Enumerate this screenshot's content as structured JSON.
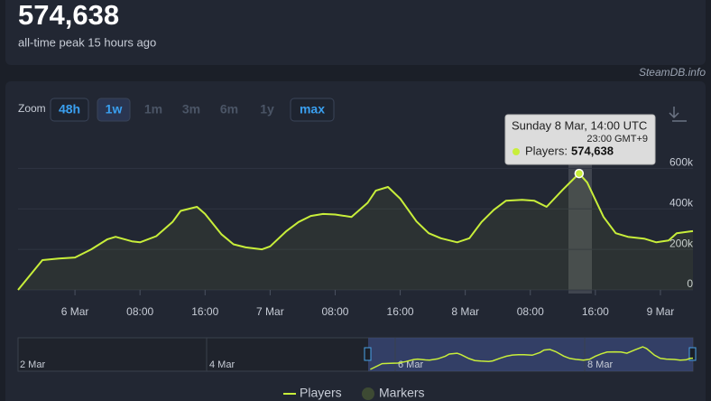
{
  "header": {
    "peak": "574,638",
    "caption": "all-time peak 15 hours ago",
    "credit": "SteamDB.info"
  },
  "zoom": {
    "label": "Zoom",
    "buttons": [
      "48h",
      "1w",
      "1m",
      "3m",
      "6m",
      "1y",
      "max"
    ]
  },
  "tooltip": {
    "title": "Sunday 8 Mar, 14:00 UTC",
    "subtitle": "23:00 GMT+9",
    "label": "Players:",
    "value": "574,638"
  },
  "navigator": {
    "labels": [
      "2 Mar",
      "4 Mar",
      "6 Mar",
      "8 Mar"
    ]
  },
  "legend": [
    {
      "name": "Markers",
      "color": "#3d4a33"
    }
  ],
  "chart_data": {
    "type": "line",
    "x": [
      -7,
      -4,
      -2,
      0,
      2,
      4,
      5,
      7,
      8,
      10,
      12,
      13,
      15,
      16,
      18,
      19.5,
      21,
      23,
      24,
      26,
      27.5,
      29,
      30.5,
      32,
      34,
      36,
      37,
      38.5,
      40,
      42,
      43.5,
      45,
      47,
      48.5,
      50,
      51.5,
      53,
      55,
      56.5,
      58,
      60,
      62,
      63,
      65,
      66.5,
      68,
      70,
      71.5,
      73,
      74,
      76
    ],
    "series": [
      {
        "name": "Players",
        "color": "#c8ee3a",
        "values": [
          0,
          147000,
          155000,
          160000,
          200000,
          250000,
          262000,
          240000,
          235000,
          265000,
          335000,
          390000,
          410000,
          375000,
          275000,
          225000,
          210000,
          200000,
          215000,
          290000,
          335000,
          365000,
          375000,
          372000,
          360000,
          430000,
          490000,
          508000,
          450000,
          338000,
          280000,
          255000,
          235000,
          255000,
          335000,
          395000,
          440000,
          445000,
          440000,
          410000,
          495000,
          574638,
          530000,
          360000,
          280000,
          262000,
          253000,
          235000,
          244000,
          280000,
          290000
        ]
      }
    ],
    "xlim": [
      -7,
      76
    ],
    "xticks": [
      {
        "value": 0,
        "label": "6 Mar"
      },
      {
        "value": 8,
        "label": "08:00"
      },
      {
        "value": 16,
        "label": "16:00"
      },
      {
        "value": 24,
        "label": "7 Mar"
      },
      {
        "value": 32,
        "label": "08:00"
      },
      {
        "value": 40,
        "label": "16:00"
      },
      {
        "value": 48,
        "label": "8 Mar"
      },
      {
        "value": 56,
        "label": "08:00"
      },
      {
        "value": 64,
        "label": "16:00"
      },
      {
        "value": 72,
        "label": "9 Mar"
      }
    ],
    "ylim": [
      0,
      780000
    ],
    "yticks": [
      {
        "value": 0,
        "label": "0"
      },
      {
        "value": 200000,
        "label": "200k"
      },
      {
        "value": 400000,
        "label": "400k"
      },
      {
        "value": 600000,
        "label": "600k"
      }
    ],
    "grid": true
  }
}
